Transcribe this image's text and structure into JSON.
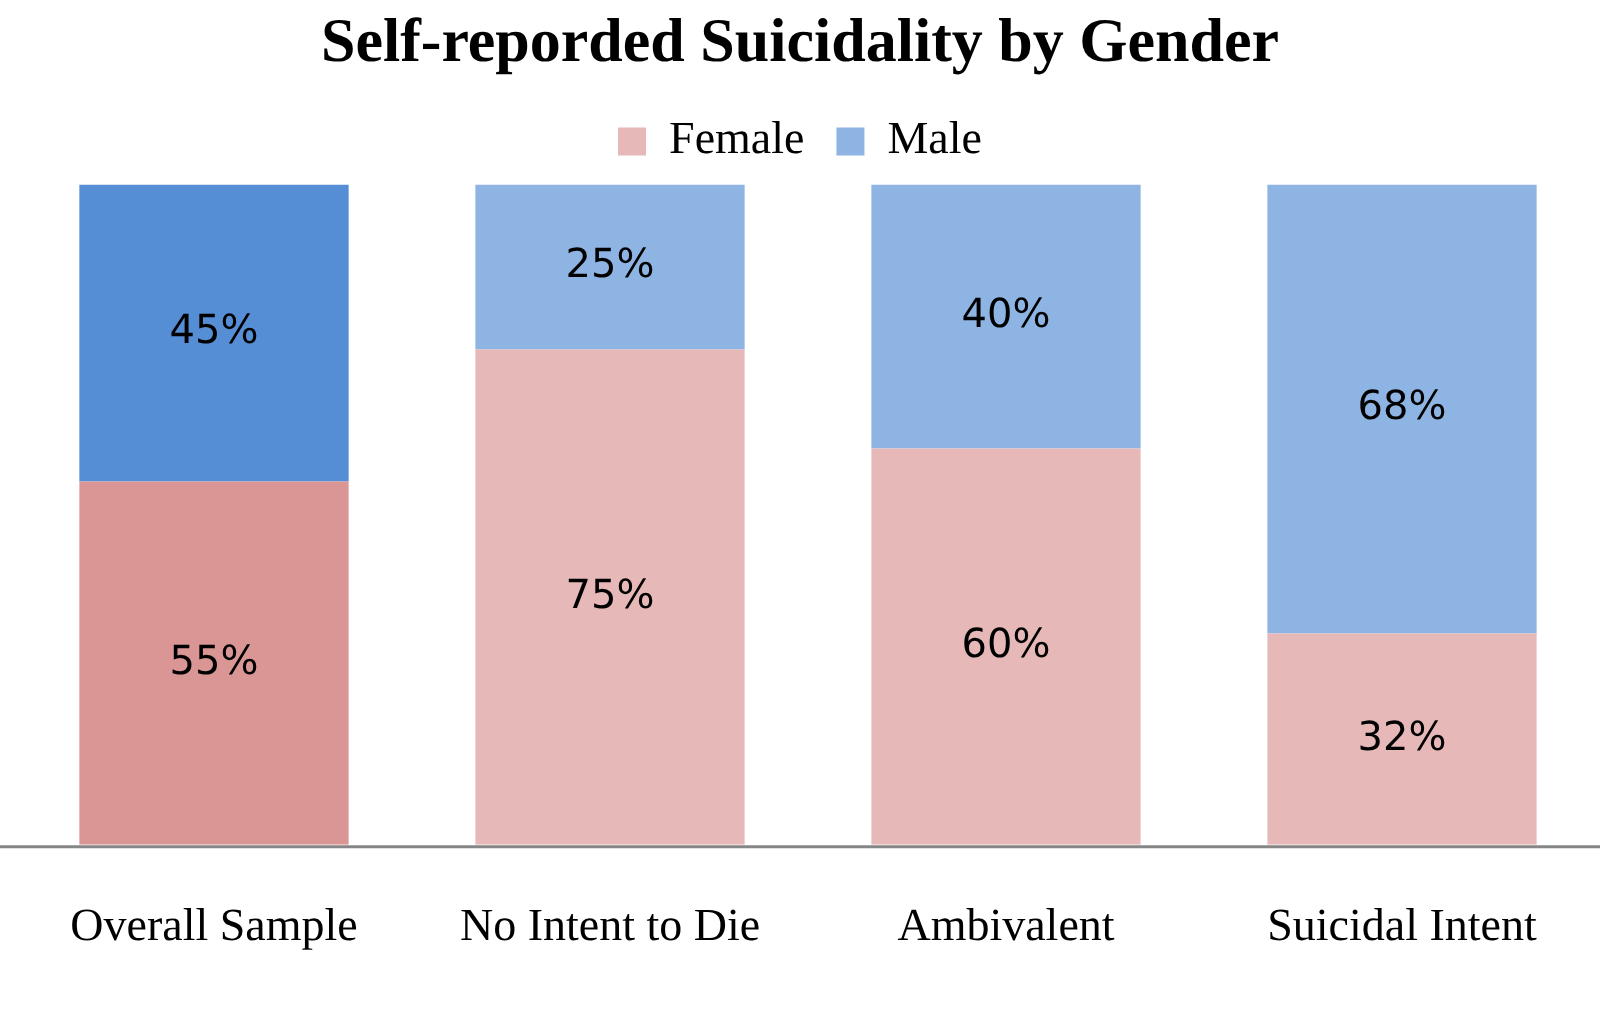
{
  "chart_data": {
    "type": "bar",
    "title": "Self-reporded Suicidality by Gender",
    "categories": [
      "Overall Sample",
      "No Intent to Die",
      "Ambivalent",
      "Suicidal Intent"
    ],
    "stacked": true,
    "ylim": [
      0,
      100
    ],
    "tick_labels": "x",
    "grid": false,
    "legend": "top",
    "series": [
      {
        "name": "Female",
        "color": "#e6b9b8",
        "colors": [
          "#d99694",
          "#e6b9b8",
          "#e6b9b8",
          "#e6b9b8"
        ],
        "values": [
          55,
          75,
          60,
          32
        ],
        "value_labels": [
          "55%",
          "75%",
          "60%",
          "32%"
        ]
      },
      {
        "name": "Male",
        "color": "#8eb4e3",
        "colors": [
          "#558ed5",
          "#8eb4e3",
          "#8eb4e3",
          "#8eb4e3"
        ],
        "values": [
          45,
          25,
          40,
          68
        ],
        "value_labels": [
          "45%",
          "25%",
          "40%",
          "68%"
        ]
      }
    ]
  }
}
